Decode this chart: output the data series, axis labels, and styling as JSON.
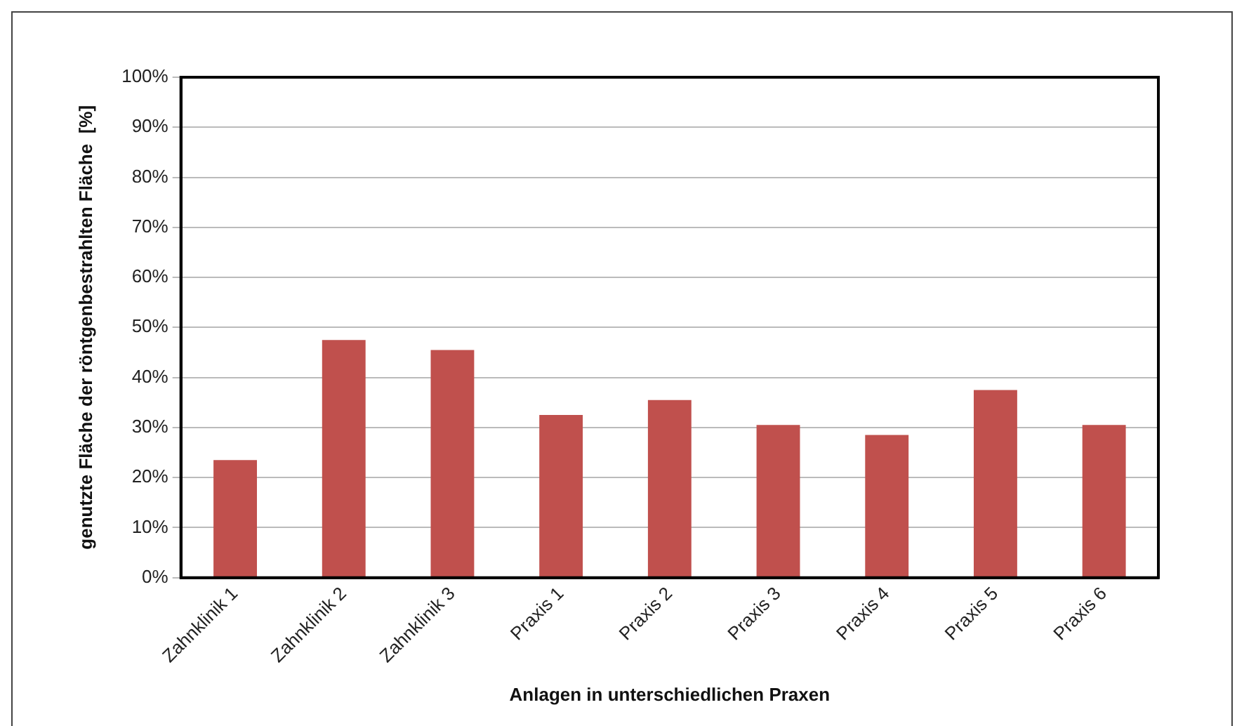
{
  "chart_data": {
    "type": "bar",
    "xlabel": "Anlagen in unterschiedlichen Praxen",
    "ylabel": "genutzte Fläche der röntgenbestrahlten Fläche  [%]",
    "categories": [
      "Zahnklinik 1",
      "Zahnklinik 2",
      "Zahnklinik 3",
      "Praxis 1",
      "Praxis 2",
      "Praxis 3",
      "Praxis 4",
      "Praxis 5",
      "Praxis 6"
    ],
    "values": [
      23.5,
      47.5,
      45.5,
      32.5,
      35.5,
      30.5,
      28.5,
      37.5,
      30.5
    ],
    "color": "#c0504d",
    "ylim": [
      0,
      100
    ],
    "yticks": [
      {
        "value": 0,
        "label": "0%"
      },
      {
        "value": 10,
        "label": "10%"
      },
      {
        "value": 20,
        "label": "20%"
      },
      {
        "value": 30,
        "label": "30%"
      },
      {
        "value": 40,
        "label": "40%"
      },
      {
        "value": 50,
        "label": "50%"
      },
      {
        "value": 60,
        "label": "60%"
      },
      {
        "value": 70,
        "label": "70%"
      },
      {
        "value": 80,
        "label": "80%"
      },
      {
        "value": 90,
        "label": "90%"
      },
      {
        "value": 100,
        "label": "100%"
      }
    ],
    "grid": "y",
    "legend": false
  }
}
